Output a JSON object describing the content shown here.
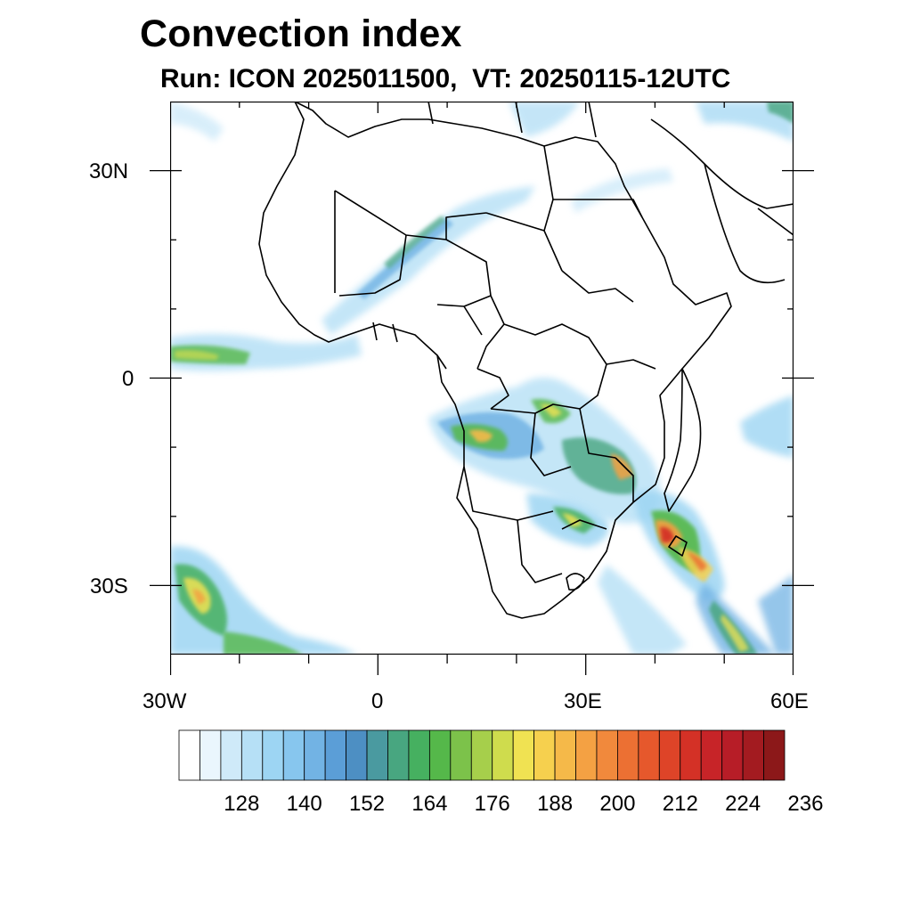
{
  "title": "Convection index",
  "subtitle": "Run: ICON 2025011500,  VT: 20250115-12UTC",
  "map": {
    "region": "Africa",
    "projection": "cylindrical equidistant",
    "lon_range": [
      -30,
      60
    ],
    "lat_range": [
      -40,
      40
    ],
    "x_tick_labels": [
      "30W",
      "0",
      "30E",
      "60E"
    ],
    "y_tick_labels": [
      "30N",
      "0",
      "30S"
    ],
    "field": "convection index"
  },
  "colorbar": {
    "labels": [
      "128",
      "140",
      "152",
      "164",
      "176",
      "188",
      "200",
      "212",
      "224",
      "236"
    ],
    "colors": [
      "#ffffff",
      "#eaf6fd",
      "#cfeaf9",
      "#b6e0f6",
      "#9dd5f3",
      "#87c6ee",
      "#72b3e4",
      "#5b9ed7",
      "#4d8fc3",
      "#4a9aa0",
      "#48a680",
      "#46b060",
      "#55b84a",
      "#7cc24a",
      "#a6cf4b",
      "#cfdc4d",
      "#f0e252",
      "#f6d04e",
      "#f5b949",
      "#f4a143",
      "#f1893c",
      "#ec7033",
      "#e6582c",
      "#de4428",
      "#d43126",
      "#c72428",
      "#b71d27",
      "#a31b20",
      "#8c1819"
    ]
  }
}
